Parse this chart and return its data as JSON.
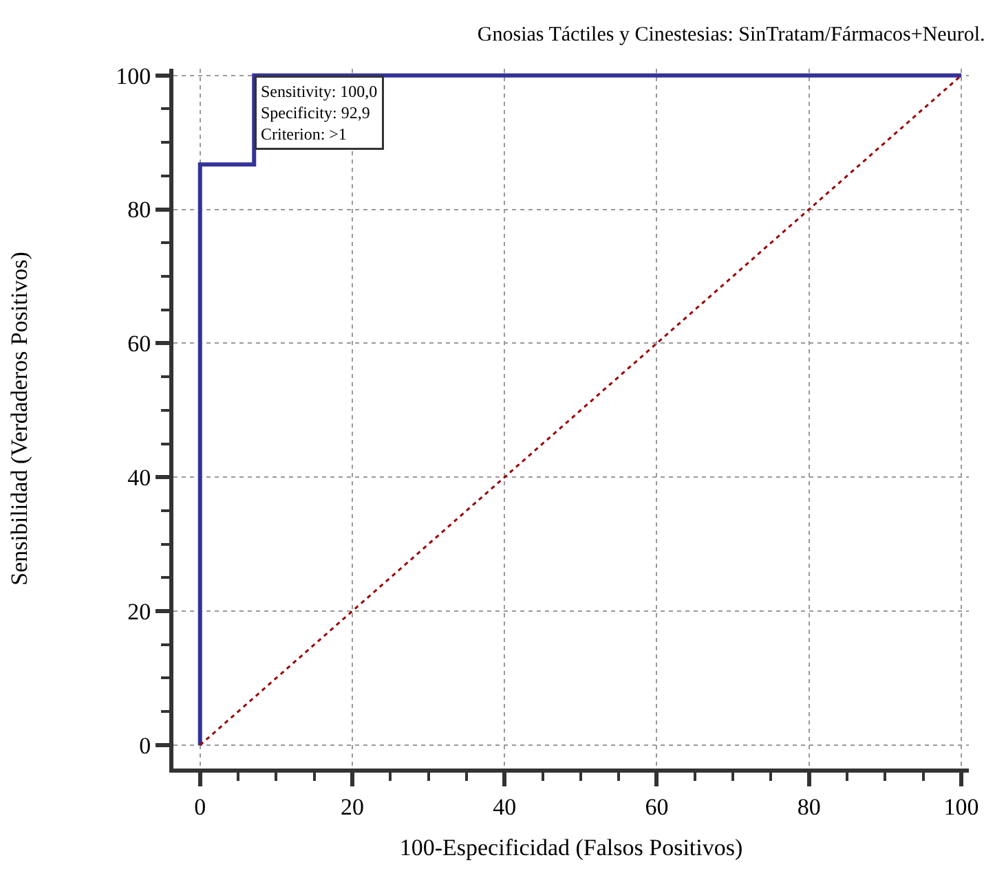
{
  "chart_data": {
    "type": "line",
    "title": "Gnosias Táctiles y Cinestesias: SinTratam/Fármacos+Neurol.",
    "xlabel": "100-Especificidad (Falsos Positivos)",
    "ylabel": "Sensibilidad (Verdaderos Positivos)",
    "series": [
      {
        "x": [
          0,
          0,
          7.1,
          7.1,
          100
        ],
        "values": [
          0,
          86.7,
          86.7,
          100,
          100
        ],
        "color": "#333399",
        "line_style": "solid"
      },
      {
        "x": [
          0,
          100
        ],
        "values": [
          0,
          100
        ],
        "color": "#990000",
        "line_style": "dotted"
      }
    ],
    "annotations": [
      {
        "text": "Sensitivity: 100,0\nSpecificity: 92,9\nCriterion: >1",
        "x": 7.1,
        "y": 100
      }
    ],
    "xlim": [
      -3.5,
      101
    ],
    "ylim": [
      -3.5,
      101
    ],
    "xticks": [
      0,
      20,
      40,
      60,
      80,
      100
    ],
    "yticks": [
      0,
      20,
      40,
      60,
      80,
      100
    ],
    "grid": true,
    "legend": false,
    "marker": "none"
  }
}
